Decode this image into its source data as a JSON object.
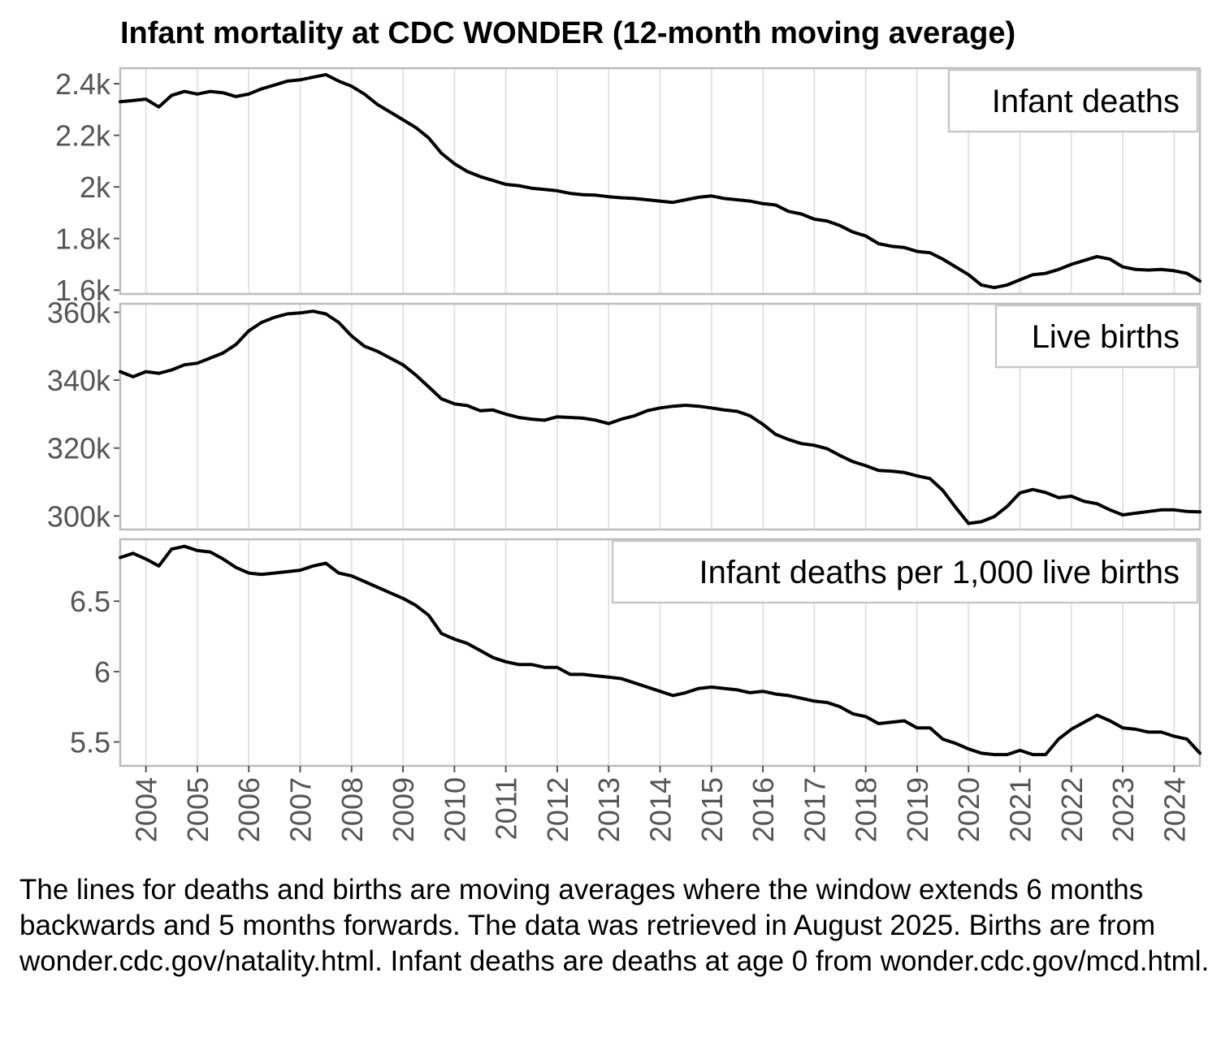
{
  "title": "Infant mortality at CDC WONDER (12-month moving average)",
  "caption": "The lines for deaths and births are moving averages where the window extends 6 months backwards and 5 months forwards. The data was retrieved in August 2025. Births are from wonder.cdc.gov/natality.html. Infant deaths are deaths at age 0 from wonder.cdc.gov/mcd.html.",
  "chart_data": {
    "type": "line",
    "title": "Infant mortality at CDC WONDER (12-month moving average)",
    "xlim": [
      2003.5,
      2024.5
    ],
    "x_ticks": [
      2004,
      2005,
      2006,
      2007,
      2008,
      2009,
      2010,
      2011,
      2012,
      2013,
      2014,
      2015,
      2016,
      2017,
      2018,
      2019,
      2020,
      2021,
      2022,
      2023,
      2024
    ],
    "x_tick_labels": [
      "2004",
      "2005",
      "2006",
      "2007",
      "2008",
      "2009",
      "2010",
      "2011",
      "2012",
      "2013",
      "2014",
      "2015",
      "2016",
      "2017",
      "2018",
      "2019",
      "2020",
      "2021",
      "2022",
      "2023",
      "2024"
    ],
    "panels": [
      {
        "strip": "Infant deaths",
        "ylim": [
          1585,
          2460
        ],
        "y_ticks": [
          1600,
          1800,
          2000,
          2200,
          2400
        ],
        "y_tick_labels": [
          "1.6k",
          "1.8k",
          "2k",
          "2.2k",
          "2.4k"
        ],
        "points": [
          [
            2003.5,
            2330
          ],
          [
            2003.75,
            2335
          ],
          [
            2004.0,
            2340
          ],
          [
            2004.25,
            2310
          ],
          [
            2004.5,
            2355
          ],
          [
            2004.75,
            2370
          ],
          [
            2005.0,
            2360
          ],
          [
            2005.25,
            2370
          ],
          [
            2005.5,
            2365
          ],
          [
            2005.75,
            2350
          ],
          [
            2006.0,
            2360
          ],
          [
            2006.25,
            2380
          ],
          [
            2006.5,
            2395
          ],
          [
            2006.75,
            2410
          ],
          [
            2007.0,
            2415
          ],
          [
            2007.25,
            2425
          ],
          [
            2007.5,
            2435
          ],
          [
            2007.75,
            2410
          ],
          [
            2008.0,
            2390
          ],
          [
            2008.25,
            2360
          ],
          [
            2008.5,
            2320
          ],
          [
            2008.75,
            2290
          ],
          [
            2009.0,
            2260
          ],
          [
            2009.25,
            2230
          ],
          [
            2009.5,
            2190
          ],
          [
            2009.75,
            2130
          ],
          [
            2010.0,
            2090
          ],
          [
            2010.25,
            2060
          ],
          [
            2010.5,
            2040
          ],
          [
            2010.75,
            2025
          ],
          [
            2011.0,
            2010
          ],
          [
            2011.25,
            2005
          ],
          [
            2011.5,
            1995
          ],
          [
            2011.75,
            1990
          ],
          [
            2012.0,
            1985
          ],
          [
            2012.25,
            1975
          ],
          [
            2012.5,
            1970
          ],
          [
            2012.75,
            1968
          ],
          [
            2013.0,
            1962
          ],
          [
            2013.25,
            1958
          ],
          [
            2013.5,
            1955
          ],
          [
            2013.75,
            1950
          ],
          [
            2014.0,
            1945
          ],
          [
            2014.25,
            1940
          ],
          [
            2014.5,
            1950
          ],
          [
            2014.75,
            1960
          ],
          [
            2015.0,
            1965
          ],
          [
            2015.25,
            1955
          ],
          [
            2015.5,
            1950
          ],
          [
            2015.75,
            1945
          ],
          [
            2016.0,
            1935
          ],
          [
            2016.25,
            1930
          ],
          [
            2016.5,
            1905
          ],
          [
            2016.75,
            1895
          ],
          [
            2017.0,
            1875
          ],
          [
            2017.25,
            1868
          ],
          [
            2017.5,
            1850
          ],
          [
            2017.75,
            1825
          ],
          [
            2018.0,
            1810
          ],
          [
            2018.25,
            1780
          ],
          [
            2018.5,
            1770
          ],
          [
            2018.75,
            1765
          ],
          [
            2019.0,
            1750
          ],
          [
            2019.25,
            1745
          ],
          [
            2019.5,
            1720
          ],
          [
            2019.75,
            1690
          ],
          [
            2020.0,
            1660
          ],
          [
            2020.25,
            1620
          ],
          [
            2020.5,
            1610
          ],
          [
            2020.75,
            1620
          ],
          [
            2021.0,
            1640
          ],
          [
            2021.25,
            1660
          ],
          [
            2021.5,
            1665
          ],
          [
            2021.75,
            1680
          ],
          [
            2022.0,
            1700
          ],
          [
            2022.25,
            1715
          ],
          [
            2022.5,
            1730
          ],
          [
            2022.75,
            1720
          ],
          [
            2023.0,
            1690
          ],
          [
            2023.25,
            1680
          ],
          [
            2023.5,
            1678
          ],
          [
            2023.75,
            1680
          ],
          [
            2024.0,
            1675
          ],
          [
            2024.25,
            1665
          ],
          [
            2024.5,
            1635
          ]
        ]
      },
      {
        "strip": "Live births",
        "ylim": [
          296000,
          362500
        ],
        "y_ticks": [
          300000,
          320000,
          340000,
          360000
        ],
        "y_tick_labels": [
          "300k",
          "320k",
          "340k",
          "360k"
        ],
        "points": [
          [
            2003.5,
            342500
          ],
          [
            2003.75,
            341000
          ],
          [
            2004.0,
            342500
          ],
          [
            2004.25,
            342000
          ],
          [
            2004.5,
            343000
          ],
          [
            2004.75,
            344500
          ],
          [
            2005.0,
            345000
          ],
          [
            2005.25,
            346500
          ],
          [
            2005.5,
            348000
          ],
          [
            2005.75,
            350500
          ],
          [
            2006.0,
            354500
          ],
          [
            2006.25,
            357000
          ],
          [
            2006.5,
            358500
          ],
          [
            2006.75,
            359500
          ],
          [
            2007.0,
            359800
          ],
          [
            2007.25,
            360300
          ],
          [
            2007.5,
            359500
          ],
          [
            2007.75,
            357000
          ],
          [
            2008.0,
            353000
          ],
          [
            2008.25,
            350000
          ],
          [
            2008.5,
            348500
          ],
          [
            2008.75,
            346500
          ],
          [
            2009.0,
            344500
          ],
          [
            2009.25,
            341500
          ],
          [
            2009.5,
            338000
          ],
          [
            2009.75,
            334500
          ],
          [
            2010.0,
            333000
          ],
          [
            2010.25,
            332500
          ],
          [
            2010.5,
            331000
          ],
          [
            2010.75,
            331200
          ],
          [
            2011.0,
            330000
          ],
          [
            2011.25,
            329000
          ],
          [
            2011.5,
            328500
          ],
          [
            2011.75,
            328200
          ],
          [
            2012.0,
            329200
          ],
          [
            2012.25,
            329000
          ],
          [
            2012.5,
            328800
          ],
          [
            2012.75,
            328200
          ],
          [
            2013.0,
            327200
          ],
          [
            2013.25,
            328500
          ],
          [
            2013.5,
            329500
          ],
          [
            2013.75,
            331000
          ],
          [
            2014.0,
            331800
          ],
          [
            2014.25,
            332300
          ],
          [
            2014.5,
            332600
          ],
          [
            2014.75,
            332300
          ],
          [
            2015.0,
            331800
          ],
          [
            2015.25,
            331200
          ],
          [
            2015.5,
            330800
          ],
          [
            2015.75,
            329500
          ],
          [
            2016.0,
            327000
          ],
          [
            2016.25,
            324000
          ],
          [
            2016.5,
            322500
          ],
          [
            2016.75,
            321300
          ],
          [
            2017.0,
            320800
          ],
          [
            2017.25,
            319800
          ],
          [
            2017.5,
            317800
          ],
          [
            2017.75,
            316000
          ],
          [
            2018.0,
            314800
          ],
          [
            2018.25,
            313400
          ],
          [
            2018.5,
            313200
          ],
          [
            2018.75,
            312800
          ],
          [
            2019.0,
            311800
          ],
          [
            2019.25,
            311000
          ],
          [
            2019.5,
            307500
          ],
          [
            2019.75,
            302500
          ],
          [
            2020.0,
            297800
          ],
          [
            2020.25,
            298300
          ],
          [
            2020.5,
            299800
          ],
          [
            2020.75,
            302800
          ],
          [
            2021.0,
            306800
          ],
          [
            2021.25,
            307800
          ],
          [
            2021.5,
            306900
          ],
          [
            2021.75,
            305400
          ],
          [
            2022.0,
            305800
          ],
          [
            2022.25,
            304300
          ],
          [
            2022.5,
            303600
          ],
          [
            2022.75,
            301800
          ],
          [
            2023.0,
            300300
          ],
          [
            2023.25,
            300800
          ],
          [
            2023.5,
            301300
          ],
          [
            2023.75,
            301800
          ],
          [
            2024.0,
            301800
          ],
          [
            2024.25,
            301300
          ],
          [
            2024.5,
            301200
          ]
        ]
      },
      {
        "strip": "Infant deaths per 1,000 live births",
        "ylim": [
          5.33,
          6.94
        ],
        "y_ticks": [
          5.5,
          6,
          6.5
        ],
        "y_tick_labels": [
          "5.5",
          "6",
          "6.5"
        ],
        "points": [
          [
            2003.5,
            6.81
          ],
          [
            2003.75,
            6.84
          ],
          [
            2004.0,
            6.8
          ],
          [
            2004.25,
            6.75
          ],
          [
            2004.5,
            6.87
          ],
          [
            2004.75,
            6.89
          ],
          [
            2005.0,
            6.86
          ],
          [
            2005.25,
            6.85
          ],
          [
            2005.5,
            6.8
          ],
          [
            2005.75,
            6.74
          ],
          [
            2006.0,
            6.7
          ],
          [
            2006.25,
            6.69
          ],
          [
            2006.5,
            6.7
          ],
          [
            2006.75,
            6.71
          ],
          [
            2007.0,
            6.72
          ],
          [
            2007.25,
            6.75
          ],
          [
            2007.5,
            6.77
          ],
          [
            2007.75,
            6.7
          ],
          [
            2008.0,
            6.68
          ],
          [
            2008.25,
            6.64
          ],
          [
            2008.5,
            6.6
          ],
          [
            2008.75,
            6.56
          ],
          [
            2009.0,
            6.52
          ],
          [
            2009.25,
            6.47
          ],
          [
            2009.5,
            6.4
          ],
          [
            2009.75,
            6.27
          ],
          [
            2010.0,
            6.23
          ],
          [
            2010.25,
            6.2
          ],
          [
            2010.5,
            6.15
          ],
          [
            2010.75,
            6.1
          ],
          [
            2011.0,
            6.07
          ],
          [
            2011.25,
            6.05
          ],
          [
            2011.5,
            6.05
          ],
          [
            2011.75,
            6.03
          ],
          [
            2012.0,
            6.03
          ],
          [
            2012.25,
            5.98
          ],
          [
            2012.5,
            5.98
          ],
          [
            2012.75,
            5.97
          ],
          [
            2013.0,
            5.96
          ],
          [
            2013.25,
            5.95
          ],
          [
            2013.5,
            5.92
          ],
          [
            2013.75,
            5.89
          ],
          [
            2014.0,
            5.86
          ],
          [
            2014.25,
            5.83
          ],
          [
            2014.5,
            5.85
          ],
          [
            2014.75,
            5.88
          ],
          [
            2015.0,
            5.89
          ],
          [
            2015.25,
            5.88
          ],
          [
            2015.5,
            5.87
          ],
          [
            2015.75,
            5.85
          ],
          [
            2016.0,
            5.86
          ],
          [
            2016.25,
            5.84
          ],
          [
            2016.5,
            5.83
          ],
          [
            2016.75,
            5.81
          ],
          [
            2017.0,
            5.79
          ],
          [
            2017.25,
            5.78
          ],
          [
            2017.5,
            5.75
          ],
          [
            2017.75,
            5.7
          ],
          [
            2018.0,
            5.68
          ],
          [
            2018.25,
            5.63
          ],
          [
            2018.5,
            5.64
          ],
          [
            2018.75,
            5.65
          ],
          [
            2019.0,
            5.6
          ],
          [
            2019.25,
            5.6
          ],
          [
            2019.5,
            5.52
          ],
          [
            2019.75,
            5.49
          ],
          [
            2020.0,
            5.45
          ],
          [
            2020.25,
            5.42
          ],
          [
            2020.5,
            5.41
          ],
          [
            2020.75,
            5.41
          ],
          [
            2021.0,
            5.44
          ],
          [
            2021.25,
            5.41
          ],
          [
            2021.5,
            5.41
          ],
          [
            2021.75,
            5.52
          ],
          [
            2022.0,
            5.59
          ],
          [
            2022.25,
            5.64
          ],
          [
            2022.5,
            5.69
          ],
          [
            2022.75,
            5.65
          ],
          [
            2023.0,
            5.6
          ],
          [
            2023.25,
            5.59
          ],
          [
            2023.5,
            5.57
          ],
          [
            2023.75,
            5.57
          ],
          [
            2024.0,
            5.54
          ],
          [
            2024.25,
            5.52
          ],
          [
            2024.5,
            5.42
          ]
        ]
      }
    ]
  }
}
